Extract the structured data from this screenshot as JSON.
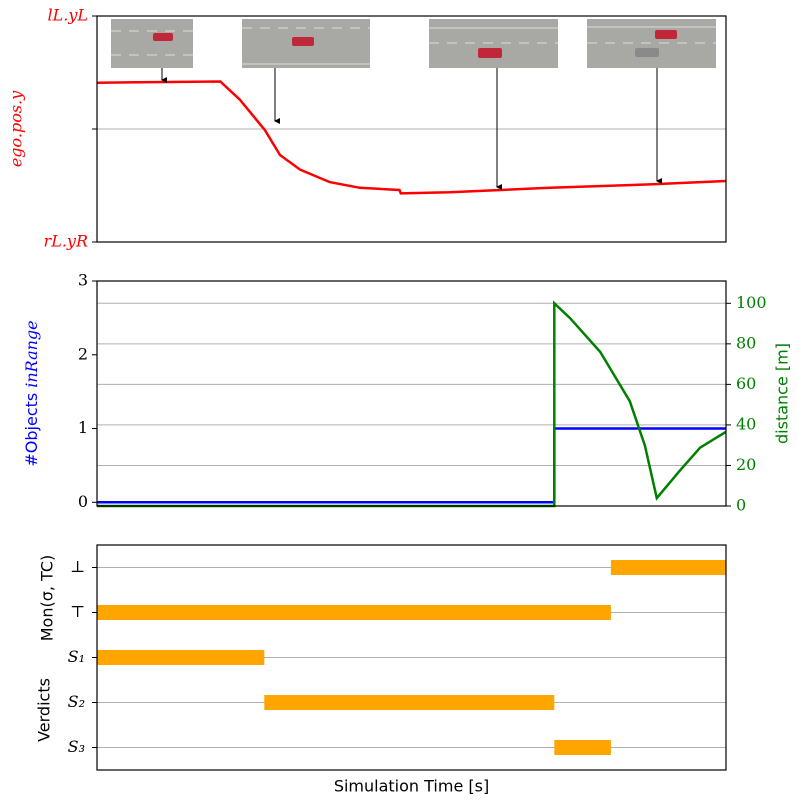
{
  "chart_data": [
    {
      "type": "line",
      "ylabel": "ego.pos.y",
      "label_color": "#ff0000",
      "xlim": [
        0,
        100
      ],
      "ylim": [
        -1,
        1
      ],
      "yticks": [
        {
          "value": -1,
          "label": "rL.yR"
        },
        {
          "value": 0,
          "label": null
        },
        {
          "value": 1,
          "label": "lL.yL"
        }
      ],
      "grid": true,
      "series": [
        {
          "color": "#ff0000",
          "x": [
            0,
            19.6,
            22.7,
            26.7,
            29.1,
            32.3,
            37.0,
            41.8,
            48.1,
            48.3,
            56.1,
            72.0,
            87.9,
            100
          ],
          "values": [
            0.41,
            0.42,
            0.26,
            -0.01,
            -0.23,
            -0.36,
            -0.47,
            -0.52,
            -0.54,
            -0.57,
            -0.56,
            -0.52,
            -0.49,
            -0.46
          ]
        }
      ]
    },
    {
      "type": "line",
      "ylabel": {
        "text": "#Objects",
        "math": "inRange"
      },
      "y2label": "distance [m]",
      "xlim": [
        0,
        100
      ],
      "ylim": [
        -0.05,
        3
      ],
      "yticks": [
        0,
        1,
        2,
        3
      ],
      "y2lim": [
        0,
        111
      ],
      "y2ticks": [
        0,
        20,
        40,
        60,
        80,
        100
      ],
      "grid": true,
      "series": [
        {
          "color": "#0000ff",
          "x": [
            0,
            72.7,
            72.7,
            100
          ],
          "values": [
            0,
            0,
            1,
            1
          ]
        },
        {
          "color": "#008000",
          "axis": "y2",
          "x": [
            0,
            72.7,
            72.7,
            75.2,
            80.0,
            84.7,
            87.1,
            89.0,
            92.7,
            95.9,
            100
          ],
          "values": [
            0,
            0,
            100,
            92.7,
            76,
            51.7,
            29.8,
            3.9,
            17.6,
            28.8,
            36.6
          ]
        }
      ]
    },
    {
      "type": "gantt",
      "ylabel": [
        "Verdicts",
        "Mon(σ, TC)"
      ],
      "xlabel": "Simulation Time [s]",
      "xlim": [
        0,
        100
      ],
      "color": "#ffa500",
      "grid": true,
      "categories": [
        "⊥",
        "⊤",
        "S₁",
        "S₂",
        "S₃"
      ],
      "bars": [
        {
          "row": 1,
          "start": 0,
          "end": 81.7
        },
        {
          "row": 0,
          "start": 81.7,
          "end": 100
        },
        {
          "row": 2,
          "start": 0,
          "end": 26.6
        },
        {
          "row": 3,
          "start": 26.6,
          "end": 72.7
        },
        {
          "row": 4,
          "start": 72.7,
          "end": 81.7
        }
      ]
    }
  ]
}
